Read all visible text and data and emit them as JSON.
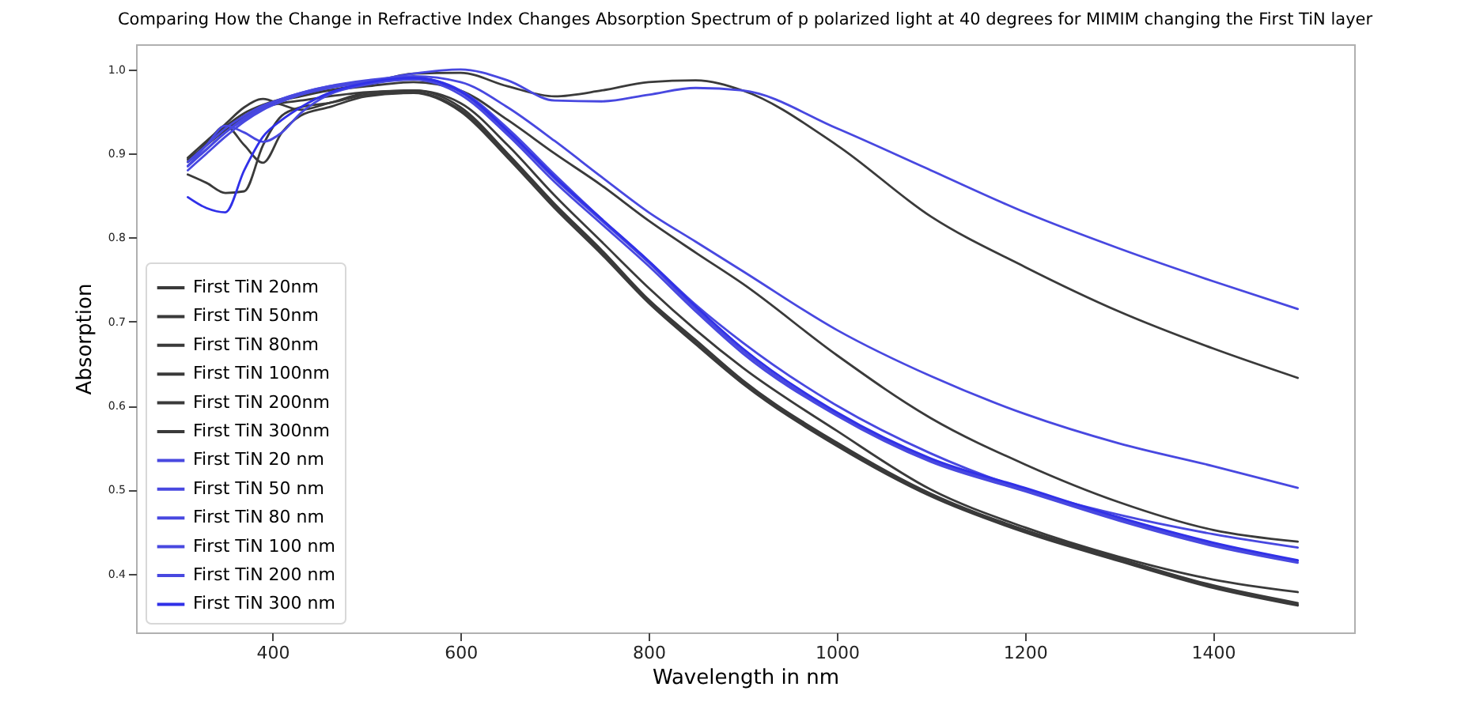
{
  "chart_data": {
    "type": "line",
    "title": "Comparing How the Change in Refractive Index Changes Absorption Spectrum of p polarized light at 40 degrees for MIMIM changing the First TiN layer",
    "xlabel": "Wavelength in nm",
    "ylabel": "Absorption",
    "xlim": [
      255,
      1550
    ],
    "ylim": [
      0.33,
      1.03
    ],
    "xticks": [
      400,
      600,
      800,
      1000,
      1200,
      1400
    ],
    "yticks": [
      0.4,
      0.5,
      0.6,
      0.7,
      0.8,
      0.9,
      {
        "value": 1,
        "label": "1.0"
      }
    ],
    "grid": false,
    "legend": "bottom left",
    "x": [
      310,
      330,
      350,
      370,
      390,
      410,
      430,
      460,
      500,
      550,
      600,
      650,
      700,
      750,
      800,
      850,
      900,
      1000,
      1100,
      1200,
      1300,
      1400,
      1490
    ],
    "series": [
      {
        "name": "First TiN 20nm",
        "color": "#3a3a3a",
        "values": [
          0.893,
          0.91,
          0.928,
          0.943,
          0.955,
          0.963,
          0.968,
          0.975,
          0.983,
          0.995,
          0.996,
          0.98,
          0.968,
          0.975,
          0.985,
          0.987,
          0.975,
          0.91,
          0.825,
          0.765,
          0.712,
          0.668,
          0.633
        ]
      },
      {
        "name": "First TiN 50nm",
        "color": "#3a3a3a",
        "values": [
          0.89,
          0.912,
          0.932,
          0.948,
          0.958,
          0.965,
          0.97,
          0.975,
          0.98,
          0.985,
          0.975,
          0.94,
          0.9,
          0.862,
          0.82,
          0.782,
          0.745,
          0.66,
          0.585,
          0.53,
          0.485,
          0.452,
          0.438
        ]
      },
      {
        "name": "First TiN 80nm",
        "color": "#3a3a3a",
        "values": [
          0.89,
          0.91,
          0.93,
          0.945,
          0.955,
          0.96,
          0.963,
          0.968,
          0.973,
          0.975,
          0.96,
          0.91,
          0.85,
          0.795,
          0.74,
          0.69,
          0.645,
          0.57,
          0.5,
          0.455,
          0.42,
          0.393,
          0.378
        ]
      },
      {
        "name": "First TiN 100nm",
        "color": "#3a3a3a",
        "values": [
          0.895,
          0.915,
          0.935,
          0.955,
          0.965,
          0.958,
          0.952,
          0.96,
          0.972,
          0.975,
          0.955,
          0.9,
          0.84,
          0.785,
          0.726,
          0.678,
          0.63,
          0.556,
          0.495,
          0.452,
          0.418,
          0.386,
          0.365
        ]
      },
      {
        "name": "First TiN 200nm",
        "color": "#3a3a3a",
        "values": [
          0.89,
          0.912,
          0.933,
          0.91,
          0.889,
          0.925,
          0.945,
          0.955,
          0.968,
          0.972,
          0.95,
          0.895,
          0.835,
          0.78,
          0.722,
          0.673,
          0.626,
          0.552,
          0.492,
          0.449,
          0.415,
          0.383,
          0.362
        ]
      },
      {
        "name": "First TiN 300nm",
        "color": "#3a3a3a",
        "values": [
          0.875,
          0.865,
          0.853,
          0.855,
          0.91,
          0.945,
          0.955,
          0.96,
          0.97,
          0.973,
          0.952,
          0.898,
          0.838,
          0.783,
          0.724,
          0.675,
          0.628,
          0.554,
          0.494,
          0.451,
          0.416,
          0.384,
          0.363
        ]
      },
      {
        "name": "First TiN 20 nm",
        "color": "#4848e0",
        "values": [
          0.88,
          0.9,
          0.92,
          0.938,
          0.952,
          0.962,
          0.97,
          0.978,
          0.985,
          0.995,
          1.0,
          0.987,
          0.963,
          0.962,
          0.97,
          0.978,
          0.975,
          0.93,
          0.88,
          0.83,
          0.787,
          0.748,
          0.715
        ]
      },
      {
        "name": "First TiN 50 nm",
        "color": "#4848e0",
        "values": [
          0.885,
          0.905,
          0.925,
          0.942,
          0.955,
          0.965,
          0.972,
          0.98,
          0.987,
          0.992,
          0.985,
          0.955,
          0.915,
          0.872,
          0.83,
          0.795,
          0.76,
          0.69,
          0.635,
          0.59,
          0.555,
          0.528,
          0.502
        ]
      },
      {
        "name": "First TiN 80 nm",
        "color": "#4848e0",
        "values": [
          0.885,
          0.905,
          0.925,
          0.94,
          0.953,
          0.962,
          0.97,
          0.978,
          0.985,
          0.99,
          0.975,
          0.93,
          0.875,
          0.822,
          0.772,
          0.72,
          0.675,
          0.6,
          0.543,
          0.5,
          0.47,
          0.447,
          0.431
        ]
      },
      {
        "name": "First TiN 100 nm",
        "color": "#4848e0",
        "values": [
          0.89,
          0.91,
          0.93,
          0.945,
          0.957,
          0.965,
          0.972,
          0.98,
          0.985,
          0.99,
          0.973,
          0.925,
          0.87,
          0.82,
          0.77,
          0.715,
          0.665,
          0.59,
          0.535,
          0.5,
          0.465,
          0.435,
          0.415
        ]
      },
      {
        "name": "First TiN 200 nm",
        "color": "#4848e0",
        "values": [
          0.885,
          0.91,
          0.933,
          0.925,
          0.914,
          0.925,
          0.948,
          0.97,
          0.982,
          0.988,
          0.97,
          0.922,
          0.866,
          0.816,
          0.766,
          0.712,
          0.662,
          0.588,
          0.533,
          0.498,
          0.463,
          0.433,
          0.413
        ]
      },
      {
        "name": "First TiN 300 nm",
        "color": "#3030e8",
        "values": [
          0.848,
          0.835,
          0.83,
          0.88,
          0.92,
          0.94,
          0.955,
          0.972,
          0.984,
          0.99,
          0.974,
          0.927,
          0.872,
          0.822,
          0.772,
          0.718,
          0.668,
          0.592,
          0.537,
          0.502,
          0.467,
          0.437,
          0.416
        ]
      }
    ]
  }
}
